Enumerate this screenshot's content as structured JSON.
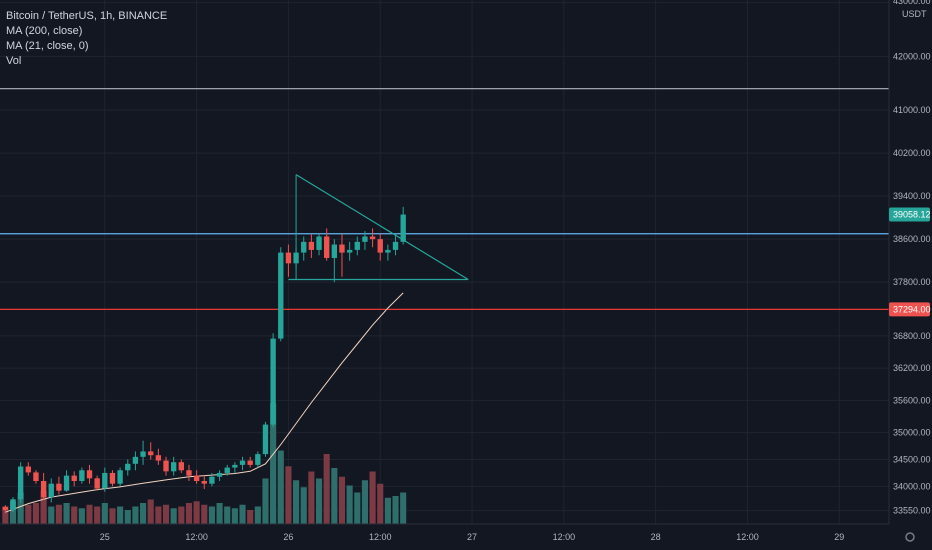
{
  "header": {
    "symbol": "Bitcoin / TetherUS, 1h, BINANCE",
    "ma200": "MA (200, close)",
    "ma21": "MA (21, close, 0)",
    "vol": "Vol",
    "currency": "USDT"
  },
  "colors": {
    "background": "#131722",
    "grid": "#1f2431",
    "up": "#26a69a",
    "down": "#ef5350",
    "vol_up": "#2e6f6c",
    "vol_down": "#7b3a44",
    "ma21": "#f2d4c0",
    "triangle": "#26a69a",
    "blue_line": "#63b7f7",
    "red_line": "#e53935",
    "white_line": "#b2b5be",
    "axis_text": "#b2b5be"
  },
  "chart_data": {
    "type": "candlestick",
    "title": "Bitcoin / TetherUS, 1h, BINANCE",
    "y_axis": {
      "unit": "USDT",
      "ticks": [
        "43000.00",
        "42000.00",
        "41000.00",
        "40200.00",
        "39400.00",
        "38600.00",
        "37800.00",
        "36800.00",
        "36200.00",
        "35600.00",
        "35000.00",
        "34500.00",
        "34000.00",
        "33550.00"
      ],
      "tick_values": [
        43000,
        42000,
        41000,
        40200,
        39400,
        38600,
        37800,
        36800,
        36200,
        35600,
        35000,
        34500,
        34000,
        33550
      ],
      "range": [
        33300,
        43050
      ]
    },
    "x_axis": {
      "ticks": [
        "25",
        "12:00",
        "26",
        "12:00",
        "27",
        "12:00",
        "28",
        "12:00",
        "29"
      ],
      "tick_hours": [
        -6,
        6,
        18,
        30,
        42,
        54,
        66,
        78,
        90
      ],
      "range_hours": [
        -19.7,
        96.5
      ]
    },
    "price_labels": [
      {
        "text": "39058.12",
        "value": 39058.12,
        "color": "#26a69a"
      },
      {
        "text": "37294.00",
        "value": 37294,
        "color": "#ef5350"
      }
    ],
    "levels": [
      {
        "name": "white",
        "value": 41400
      },
      {
        "name": "blue",
        "value": 38700
      },
      {
        "name": "red",
        "value": 37294
      }
    ],
    "triangle": {
      "apex_top": [
        19.0,
        39800
      ],
      "end": [
        41.5,
        37850
      ],
      "base": [
        18.0,
        37850
      ]
    },
    "candles_note": "hourly candles, x in hours relative to day 25 00:00",
    "ohlc": [
      [
        -19,
        33620,
        33650,
        33500,
        33560
      ],
      [
        -18,
        33560,
        33800,
        33520,
        33760
      ],
      [
        -17,
        33760,
        34450,
        33700,
        34370
      ],
      [
        -16,
        34370,
        34450,
        34200,
        34260
      ],
      [
        -15,
        34260,
        34300,
        34050,
        34100
      ],
      [
        -14,
        34100,
        34250,
        33750,
        33800
      ],
      [
        -13,
        33800,
        34150,
        33700,
        34050
      ],
      [
        -12,
        34050,
        34180,
        33850,
        33920
      ],
      [
        -11,
        33920,
        34300,
        33900,
        34200
      ],
      [
        -10,
        34200,
        34280,
        34000,
        34100
      ],
      [
        -9,
        34100,
        34350,
        34050,
        34300
      ],
      [
        -8,
        34300,
        34400,
        34050,
        34150
      ],
      [
        -7,
        34150,
        34200,
        33920,
        33960
      ],
      [
        -6,
        33960,
        34350,
        33900,
        34250
      ],
      [
        -5,
        34250,
        34300,
        34000,
        34050
      ],
      [
        -4,
        34050,
        34350,
        34000,
        34300
      ],
      [
        -3,
        34300,
        34500,
        34200,
        34420
      ],
      [
        -2,
        34420,
        34650,
        34300,
        34550
      ],
      [
        -1,
        34550,
        34850,
        34400,
        34650
      ],
      [
        0,
        34650,
        34820,
        34500,
        34580
      ],
      [
        1,
        34580,
        34700,
        34400,
        34480
      ],
      [
        2,
        34480,
        34550,
        34200,
        34280
      ],
      [
        3,
        34280,
        34550,
        34200,
        34450
      ],
      [
        4,
        34450,
        34500,
        34250,
        34300
      ],
      [
        5,
        34300,
        34400,
        34100,
        34200
      ],
      [
        6,
        34200,
        34300,
        34050,
        34100
      ],
      [
        7,
        34100,
        34200,
        33950,
        34050
      ],
      [
        8,
        34050,
        34250,
        34000,
        34180
      ],
      [
        9,
        34180,
        34300,
        34100,
        34250
      ],
      [
        10,
        34250,
        34400,
        34200,
        34350
      ],
      [
        11,
        34350,
        34450,
        34250,
        34400
      ],
      [
        12,
        34400,
        34550,
        34300,
        34480
      ],
      [
        13,
        34480,
        34550,
        34350,
        34400
      ],
      [
        14,
        34400,
        34650,
        34350,
        34600
      ],
      [
        15,
        34600,
        35200,
        34550,
        35150
      ],
      [
        16,
        35150,
        36850,
        35100,
        36750
      ],
      [
        17,
        36750,
        38450,
        36700,
        38350
      ],
      [
        18,
        38350,
        38500,
        37900,
        38150
      ],
      [
        19,
        38150,
        38450,
        38050,
        38350
      ],
      [
        20,
        38350,
        38650,
        38200,
        38550
      ],
      [
        21,
        38550,
        38700,
        38250,
        38400
      ],
      [
        22,
        38400,
        38700,
        38300,
        38650
      ],
      [
        23,
        38650,
        38800,
        38200,
        38250
      ],
      [
        24,
        38250,
        38600,
        37800,
        38500
      ],
      [
        25,
        38500,
        38700,
        37900,
        38350
      ],
      [
        26,
        38350,
        38550,
        38200,
        38400
      ],
      [
        27,
        38400,
        38650,
        38300,
        38550
      ],
      [
        28,
        38550,
        38750,
        38400,
        38650
      ],
      [
        29,
        38650,
        38800,
        38450,
        38600
      ],
      [
        30,
        38600,
        38700,
        38200,
        38350
      ],
      [
        31,
        38350,
        38500,
        38200,
        38400
      ],
      [
        32,
        38400,
        38700,
        38300,
        38550
      ],
      [
        33,
        38550,
        39200,
        38500,
        39058
      ]
    ],
    "volumes": [
      [
        -19,
        1.0
      ],
      [
        -18,
        1.3
      ],
      [
        -17,
        1.8
      ],
      [
        -16,
        1.1
      ],
      [
        -15,
        1.2
      ],
      [
        -14,
        1.9
      ],
      [
        -13,
        1.0
      ],
      [
        -12,
        1.1
      ],
      [
        -11,
        1.2
      ],
      [
        -10,
        1.0
      ],
      [
        -9,
        0.9
      ],
      [
        -8,
        1.1
      ],
      [
        -7,
        1.0
      ],
      [
        -6,
        1.2
      ],
      [
        -5,
        0.9
      ],
      [
        -4,
        1.0
      ],
      [
        -3,
        0.8
      ],
      [
        -2,
        1.0
      ],
      [
        -1,
        1.2
      ],
      [
        0,
        1.4
      ],
      [
        1,
        1.0
      ],
      [
        2,
        1.1
      ],
      [
        3,
        0.9
      ],
      [
        4,
        1.0
      ],
      [
        5,
        1.2
      ],
      [
        6,
        1.3
      ],
      [
        7,
        1.1
      ],
      [
        8,
        1.0
      ],
      [
        9,
        1.2
      ],
      [
        10,
        1.0
      ],
      [
        11,
        0.9
      ],
      [
        12,
        1.1
      ],
      [
        13,
        0.8
      ],
      [
        14,
        1.0
      ],
      [
        15,
        2.6
      ],
      [
        16,
        6.9
      ],
      [
        17,
        4.2
      ],
      [
        18,
        3.3
      ],
      [
        19,
        2.5
      ],
      [
        20,
        2.1
      ],
      [
        21,
        3.0
      ],
      [
        22,
        2.6
      ],
      [
        23,
        4.0
      ],
      [
        24,
        3.2
      ],
      [
        25,
        2.7
      ],
      [
        26,
        2.2
      ],
      [
        27,
        1.8
      ],
      [
        28,
        2.5
      ],
      [
        29,
        3.0
      ],
      [
        30,
        2.3
      ],
      [
        31,
        1.5
      ],
      [
        32,
        1.6
      ],
      [
        33,
        1.8
      ]
    ],
    "ma21": [
      [
        -19,
        33520
      ],
      [
        -16,
        33680
      ],
      [
        -13,
        33800
      ],
      [
        -10,
        33870
      ],
      [
        -7,
        33940
      ],
      [
        -4,
        33990
      ],
      [
        -1,
        34060
      ],
      [
        2,
        34120
      ],
      [
        5,
        34180
      ],
      [
        8,
        34210
      ],
      [
        11,
        34240
      ],
      [
        13,
        34280
      ],
      [
        15,
        34420
      ],
      [
        17,
        34780
      ],
      [
        19,
        35170
      ],
      [
        21,
        35560
      ],
      [
        23,
        35930
      ],
      [
        25,
        36300
      ],
      [
        27,
        36650
      ],
      [
        29,
        37000
      ],
      [
        31,
        37320
      ],
      [
        33,
        37600
      ]
    ]
  }
}
